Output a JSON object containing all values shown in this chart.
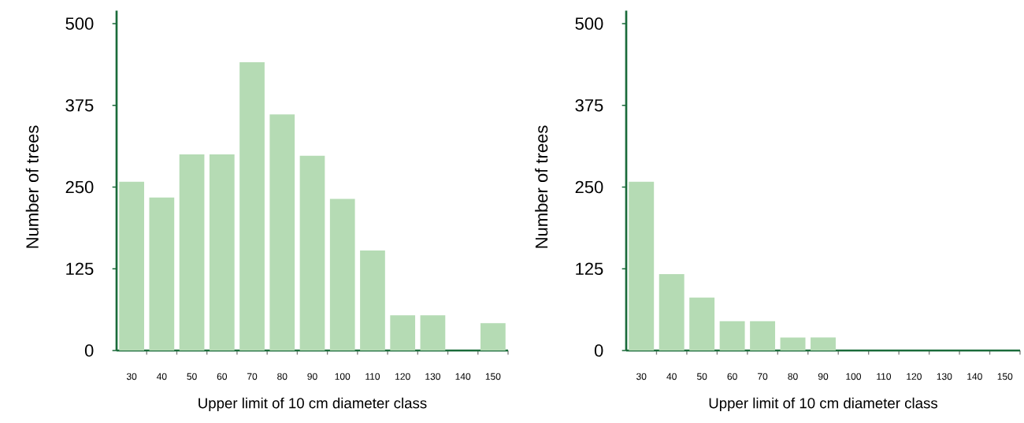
{
  "chart_data": [
    {
      "type": "bar",
      "xlabel": "Upper limit of 10 cm diameter class",
      "ylabel": "Number of trees",
      "categories": [
        "30",
        "40",
        "50",
        "60",
        "70",
        "80",
        "90",
        "100",
        "110",
        "120",
        "130",
        "140",
        "150"
      ],
      "values": [
        258,
        234,
        300,
        300,
        441,
        361,
        298,
        232,
        153,
        54,
        54,
        0,
        42
      ],
      "color": "#b5dbb4",
      "ylim": [
        0,
        520
      ],
      "yticks": [
        0,
        125,
        250,
        375,
        500
      ]
    },
    {
      "type": "bar",
      "xlabel": "Upper limit of 10 cm diameter class",
      "ylabel": "Number of trees",
      "categories": [
        "30",
        "40",
        "50",
        "60",
        "70",
        "80",
        "90",
        "100",
        "110",
        "120",
        "130",
        "140",
        "150"
      ],
      "values": [
        258,
        117,
        81,
        45,
        45,
        20,
        20,
        0,
        0,
        0,
        0,
        0,
        0
      ],
      "color": "#b5dbb4",
      "ylim": [
        0,
        520
      ],
      "yticks": [
        0,
        125,
        250,
        375,
        500
      ]
    }
  ]
}
